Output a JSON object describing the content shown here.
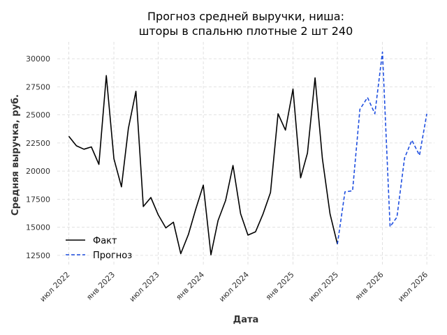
{
  "chart_data": {
    "type": "line",
    "title_line1": "Прогноз средней выручки, ниша:",
    "title_line2": "шторы в спальню плотные 2 шт 240",
    "xlabel": "Дата",
    "ylabel": "Средняя выручка, руб.",
    "ylim": [
      11500,
      31500
    ],
    "xlim": [
      "2022-05-15",
      "2026-08-01"
    ],
    "grid": true,
    "legend_position": "center-left",
    "yticks": [
      12500,
      15000,
      17500,
      20000,
      22500,
      25000,
      27500,
      30000
    ],
    "ytick_labels": [
      "12500",
      "15000",
      "17500",
      "20000",
      "22500",
      "25000",
      "27500",
      "30000"
    ],
    "xticks": [
      "2022-07-01",
      "2023-01-01",
      "2023-07-01",
      "2024-01-01",
      "2024-07-01",
      "2025-01-01",
      "2025-07-01",
      "2026-01-01",
      "2026-07-01"
    ],
    "xtick_labels": [
      "июл 2022",
      "янв 2023",
      "июл 2023",
      "янв 2024",
      "июл 2024",
      "янв 2025",
      "июл 2025",
      "янв 2026",
      "июл 2026"
    ],
    "series": [
      {
        "name": "Факт",
        "color": "#000000",
        "dashed": false,
        "x": [
          "2022-07-01",
          "2022-08-01",
          "2022-09-01",
          "2022-10-01",
          "2022-11-01",
          "2022-12-01",
          "2023-01-01",
          "2023-02-01",
          "2023-03-01",
          "2023-04-01",
          "2023-05-01",
          "2023-06-01",
          "2023-07-01",
          "2023-08-01",
          "2023-09-01",
          "2023-10-01",
          "2023-11-01",
          "2023-12-01",
          "2024-01-01",
          "2024-02-01",
          "2024-03-01",
          "2024-04-01",
          "2024-05-01",
          "2024-06-01",
          "2024-07-01",
          "2024-08-01",
          "2024-09-01",
          "2024-10-01",
          "2024-11-01",
          "2024-12-01",
          "2025-01-01",
          "2025-02-01",
          "2025-03-01",
          "2025-04-01",
          "2025-05-01",
          "2025-06-01",
          "2025-07-01"
        ],
        "y": [
          23100,
          22250,
          21950,
          22150,
          20600,
          28500,
          21100,
          18600,
          23800,
          27100,
          16850,
          17650,
          16100,
          14950,
          15450,
          12650,
          14350,
          16600,
          18750,
          12550,
          15600,
          17400,
          20500,
          16200,
          14300,
          14600,
          16200,
          18100,
          25100,
          23650,
          27300,
          19400,
          21600,
          28300,
          21100,
          16200,
          13500
        ]
      },
      {
        "name": "Прогноз",
        "color": "#1f4fe0",
        "dashed": true,
        "x": [
          "2025-07-01",
          "2025-08-01",
          "2025-09-01",
          "2025-10-01",
          "2025-11-01",
          "2025-12-01",
          "2026-01-01",
          "2026-02-01",
          "2026-03-01",
          "2026-04-01",
          "2026-05-01",
          "2026-06-01",
          "2026-07-01"
        ],
        "y": [
          13500,
          18150,
          18250,
          25500,
          26550,
          25100,
          30600,
          15050,
          15900,
          21150,
          22750,
          21400,
          25100
        ]
      }
    ]
  }
}
